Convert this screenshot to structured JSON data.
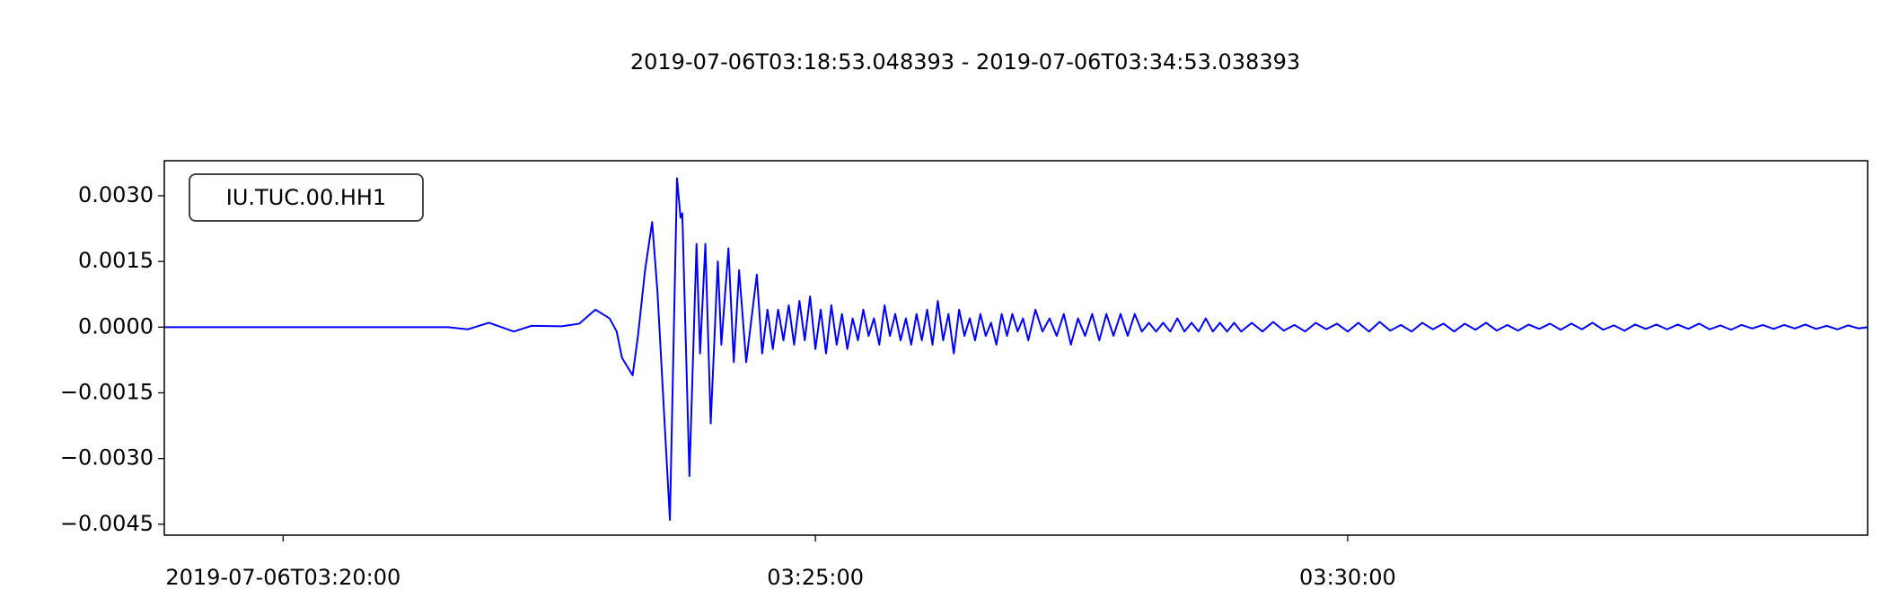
{
  "chart_data": {
    "type": "line",
    "title": "2019-07-06T03:18:53.048393  -  2019-07-06T03:34:53.038393",
    "annotation": "IU.TUC.00.HH1",
    "color": "#0000ff",
    "xlim": [
      "2019-07-06T03:18:53.048393",
      "2019-07-06T03:34:53.038393"
    ],
    "xticks": [
      "2019-07-06T03:20:00",
      {
        "value": "2019-07-06T03:25:00",
        "label": "03:25:00"
      },
      {
        "value": "2019-07-06T03:30:00",
        "label": "03:30:00"
      }
    ],
    "ylim": [
      -0.00475,
      0.0038
    ],
    "yticks": [
      {
        "value": 0.003,
        "label": "0.0030"
      },
      {
        "value": 0.0015,
        "label": "0.0015"
      },
      {
        "value": 0,
        "label": "0.0000"
      },
      {
        "value": -0.0015,
        "label": "−0.0015"
      },
      {
        "value": -0.003,
        "label": "−0.0030"
      },
      {
        "value": -0.0045,
        "label": "−0.0045"
      }
    ],
    "x": [
      "2019-07-06T03:18:53.048393",
      "2019-07-06T03:21:33",
      "2019-07-06T03:21:44",
      "2019-07-06T03:21:56",
      "2019-07-06T03:22:10",
      "2019-07-06T03:22:20",
      "2019-07-06T03:22:37",
      "2019-07-06T03:22:47",
      "2019-07-06T03:22:56",
      "2019-07-06T03:23:04",
      "2019-07-06T03:23:08",
      "2019-07-06T03:23:11",
      "2019-07-06T03:23:17",
      "2019-07-06T03:23:20",
      "2019-07-06T03:23:24",
      "2019-07-06T03:23:28",
      "2019-07-06T03:23:31",
      "2019-07-06T03:23:38",
      "2019-07-06T03:23:42",
      "2019-07-06T03:23:44",
      "2019-07-06T03:23:45",
      "2019-07-06T03:23:49",
      "2019-07-06T03:23:53",
      "2019-07-06T03:23:55",
      "2019-07-06T03:23:58",
      "2019-07-06T03:24:01",
      "2019-07-06T03:24:05",
      "2019-07-06T03:24:07",
      "2019-07-06T03:24:11",
      "2019-07-06T03:24:14",
      "2019-07-06T03:24:17",
      "2019-07-06T03:24:21",
      "2019-07-06T03:24:27",
      "2019-07-06T03:24:30",
      "2019-07-06T03:24:33",
      "2019-07-06T03:24:36",
      "2019-07-06T03:24:39",
      "2019-07-06T03:24:42",
      "2019-07-06T03:24:45",
      "2019-07-06T03:24:48",
      "2019-07-06T03:24:51",
      "2019-07-06T03:24:54",
      "2019-07-06T03:24:57",
      "2019-07-06T03:25:00",
      "2019-07-06T03:25:03",
      "2019-07-06T03:25:06",
      "2019-07-06T03:25:09",
      "2019-07-06T03:25:12",
      "2019-07-06T03:25:15",
      "2019-07-06T03:25:18",
      "2019-07-06T03:25:21",
      "2019-07-06T03:25:24",
      "2019-07-06T03:25:27",
      "2019-07-06T03:25:30",
      "2019-07-06T03:25:33",
      "2019-07-06T03:25:36",
      "2019-07-06T03:25:39",
      "2019-07-06T03:25:42",
      "2019-07-06T03:25:45",
      "2019-07-06T03:25:48",
      "2019-07-06T03:25:51",
      "2019-07-06T03:25:54",
      "2019-07-06T03:25:57",
      "2019-07-06T03:26:00",
      "2019-07-06T03:26:03",
      "2019-07-06T03:26:06",
      "2019-07-06T03:26:09",
      "2019-07-06T03:26:12",
      "2019-07-06T03:26:15",
      "2019-07-06T03:26:18",
      "2019-07-06T03:26:21",
      "2019-07-06T03:26:24",
      "2019-07-06T03:26:27",
      "2019-07-06T03:26:30",
      "2019-07-06T03:26:33",
      "2019-07-06T03:26:36",
      "2019-07-06T03:26:39",
      "2019-07-06T03:26:42",
      "2019-07-06T03:26:45",
      "2019-07-06T03:26:48",
      "2019-07-06T03:26:51",
      "2019-07-06T03:26:54",
      "2019-07-06T03:26:57",
      "2019-07-06T03:27:00",
      "2019-07-06T03:27:04",
      "2019-07-06T03:27:08",
      "2019-07-06T03:27:12",
      "2019-07-06T03:27:16",
      "2019-07-06T03:27:20",
      "2019-07-06T03:27:24",
      "2019-07-06T03:27:28",
      "2019-07-06T03:27:32",
      "2019-07-06T03:27:36",
      "2019-07-06T03:27:40",
      "2019-07-06T03:27:44",
      "2019-07-06T03:27:48",
      "2019-07-06T03:27:52",
      "2019-07-06T03:27:56",
      "2019-07-06T03:28:00",
      "2019-07-06T03:28:04",
      "2019-07-06T03:28:08",
      "2019-07-06T03:28:12",
      "2019-07-06T03:28:16",
      "2019-07-06T03:28:20",
      "2019-07-06T03:28:24",
      "2019-07-06T03:28:28",
      "2019-07-06T03:28:32",
      "2019-07-06T03:28:36",
      "2019-07-06T03:28:40",
      "2019-07-06T03:28:44",
      "2019-07-06T03:28:48",
      "2019-07-06T03:28:52",
      "2019-07-06T03:28:56",
      "2019-07-06T03:29:00",
      "2019-07-06T03:29:06",
      "2019-07-06T03:29:12",
      "2019-07-06T03:29:18",
      "2019-07-06T03:29:24",
      "2019-07-06T03:29:30",
      "2019-07-06T03:29:36",
      "2019-07-06T03:29:42",
      "2019-07-06T03:29:48",
      "2019-07-06T03:29:54",
      "2019-07-06T03:30:00",
      "2019-07-06T03:30:06",
      "2019-07-06T03:30:12",
      "2019-07-06T03:30:18",
      "2019-07-06T03:30:24",
      "2019-07-06T03:30:30",
      "2019-07-06T03:30:36",
      "2019-07-06T03:30:42",
      "2019-07-06T03:30:48",
      "2019-07-06T03:30:54",
      "2019-07-06T03:31:00",
      "2019-07-06T03:31:06",
      "2019-07-06T03:31:12",
      "2019-07-06T03:31:18",
      "2019-07-06T03:31:24",
      "2019-07-06T03:31:30",
      "2019-07-06T03:31:36",
      "2019-07-06T03:31:42",
      "2019-07-06T03:31:48",
      "2019-07-06T03:31:54",
      "2019-07-06T03:32:00",
      "2019-07-06T03:32:06",
      "2019-07-06T03:32:12",
      "2019-07-06T03:32:18",
      "2019-07-06T03:32:24",
      "2019-07-06T03:32:30",
      "2019-07-06T03:32:36",
      "2019-07-06T03:32:42",
      "2019-07-06T03:32:48",
      "2019-07-06T03:32:54",
      "2019-07-06T03:33:00",
      "2019-07-06T03:33:06",
      "2019-07-06T03:33:12",
      "2019-07-06T03:33:18",
      "2019-07-06T03:33:24",
      "2019-07-06T03:33:30",
      "2019-07-06T03:33:36",
      "2019-07-06T03:33:42",
      "2019-07-06T03:33:48",
      "2019-07-06T03:33:54",
      "2019-07-06T03:34:00",
      "2019-07-06T03:34:06",
      "2019-07-06T03:34:12",
      "2019-07-06T03:34:18",
      "2019-07-06T03:34:24",
      "2019-07-06T03:34:30",
      "2019-07-06T03:34:36",
      "2019-07-06T03:34:42",
      "2019-07-06T03:34:48",
      "2019-07-06T03:34:53.038393"
    ],
    "values": [
      0,
      0,
      -5e-05,
      0.0001,
      -0.0001,
      3e-05,
      2e-05,
      8e-05,
      0.0004,
      0.0002,
      -0.0001,
      -0.0007,
      -0.0011,
      -0.0002,
      0.0013,
      0.0024,
      0.0008,
      -0.0044,
      0.0034,
      0.0025,
      0.0026,
      -0.0034,
      0.0019,
      -0.0006,
      0.0019,
      -0.0022,
      0.0015,
      -0.0004,
      0.0018,
      -0.0008,
      0.0013,
      -0.0008,
      0.0012,
      -0.0006,
      0.0004,
      -0.0005,
      0.0004,
      -0.0003,
      0.0005,
      -0.0004,
      0.0006,
      -0.0003,
      0.0007,
      -0.0005,
      0.0004,
      -0.0006,
      0.0005,
      -0.0004,
      0.0003,
      -0.0005,
      0.0002,
      -0.0003,
      0.0004,
      -0.0002,
      0.0002,
      -0.0004,
      0.0005,
      -0.0002,
      0.0003,
      -0.0003,
      0.0002,
      -0.0004,
      0.0003,
      -0.0003,
      0.0004,
      -0.0004,
      0.0006,
      -0.0003,
      0.0003,
      -0.0006,
      0.0004,
      -0.0002,
      0.0002,
      -0.0003,
      0.0003,
      -0.0002,
      0.0001,
      -0.0004,
      0.0003,
      -0.0002,
      0.0003,
      -0.0001,
      0.0002,
      -0.0003,
      0.0004,
      -0.0001,
      0.0002,
      -0.0002,
      0.0003,
      -0.0004,
      0.0002,
      -0.0002,
      0.0003,
      -0.0003,
      0.0003,
      -0.0002,
      0.0003,
      -0.0002,
      0.0003,
      -0.0001,
      0.0001,
      -0.0001,
      0.0001,
      -0.0001,
      0.0002,
      -0.0001,
      0.0001,
      -0.0001,
      0.0002,
      -0.0001,
      0.0001,
      -0.0001,
      0.0001,
      -0.0001,
      0.0001,
      -0.0001,
      0.00012,
      -8e-05,
      5e-05,
      -0.0001,
      0.0001,
      -5e-05,
      8e-05,
      -0.0001,
      0.0001,
      -0.0001,
      0.00012,
      -8e-05,
      5e-05,
      -0.0001,
      0.0001,
      -5e-05,
      8e-05,
      -0.0001,
      8e-05,
      -6e-05,
      0.0001,
      -8e-05,
      5e-05,
      -8e-05,
      6e-05,
      -4e-05,
      8e-05,
      -6e-05,
      8e-05,
      -5e-05,
      0.0001,
      -6e-05,
      4e-05,
      -8e-05,
      6e-05,
      -4e-05,
      6e-05,
      -5e-05,
      6e-05,
      -4e-05,
      8e-05,
      -5e-05,
      4e-05,
      -6e-05,
      5e-05,
      -3e-05,
      5e-05,
      -4e-05,
      5e-05,
      -3e-05,
      6e-05,
      -4e-05,
      3e-05,
      -5e-05,
      4e-05,
      -3e-05,
      0
    ]
  }
}
